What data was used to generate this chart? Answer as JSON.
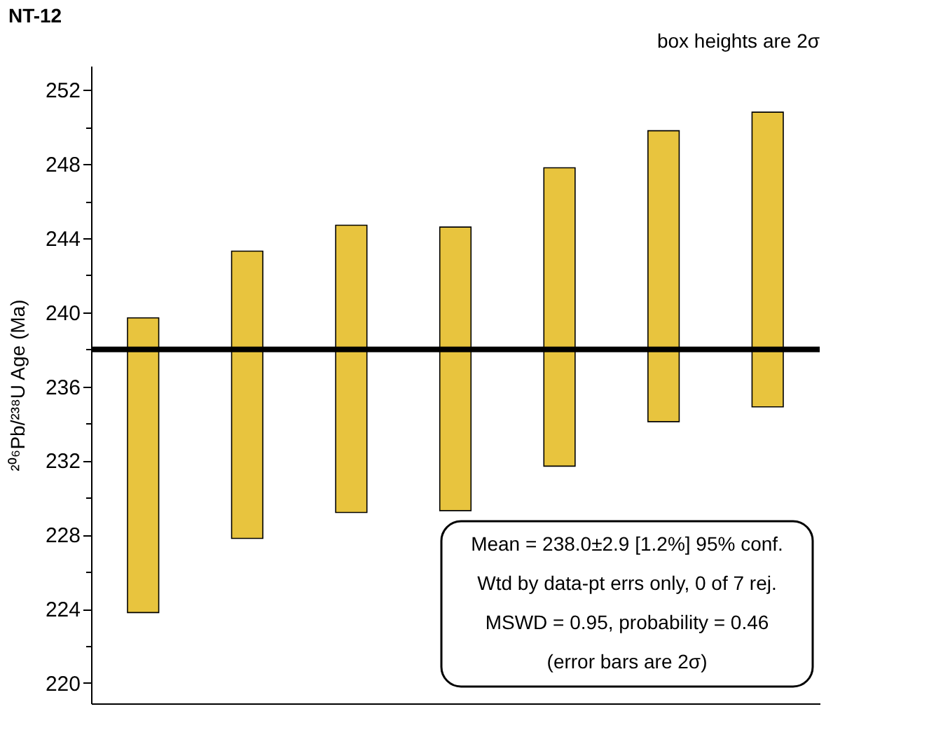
{
  "chart_data": {
    "type": "bar",
    "title": "NT-12",
    "subtitle": "box heights are 2σ",
    "ylabel": "²⁰⁶Pb/²³⁸U Age (Ma)",
    "categories": [
      null,
      null,
      null,
      null,
      null,
      null,
      null
    ],
    "base": [
      223.8,
      227.8,
      229.2,
      229.3,
      231.7,
      234.1,
      234.9
    ],
    "values": [
      15.9,
      15.5,
      15.5,
      15.3,
      16.1,
      15.7,
      15.9
    ],
    "color": "#e8c43e",
    "ylim": [
      218.9,
      253.3
    ],
    "yticks": [
      220,
      {
        "value": 222,
        "label": null
      },
      224,
      {
        "value": 226,
        "label": null
      },
      228,
      {
        "value": 230,
        "label": null
      },
      232,
      {
        "value": 234,
        "label": null
      },
      236,
      {
        "value": 238,
        "label": null
      },
      240,
      {
        "value": 242,
        "label": null
      },
      244,
      {
        "value": 246,
        "label": null
      },
      248,
      {
        "value": 250,
        "label": null
      },
      252
    ],
    "ref_lines": [
      {
        "axis": "y",
        "value": 238.0,
        "color": "#000000"
      }
    ],
    "annotations": [
      "Mean = 238.0±2.9  [1.2%]  95% conf.",
      "Wtd by data-pt errs only, 0 of 7 rej.",
      "MSWD = 0.95, probability = 0.46",
      "(error bars are 2σ)"
    ],
    "grid": false
  }
}
